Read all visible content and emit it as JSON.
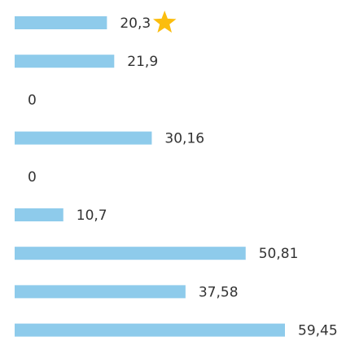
{
  "chart_data": {
    "type": "bar",
    "orientation": "horizontal",
    "color": "#8ecbeb",
    "values": [
      20.3,
      21.9,
      0,
      30.16,
      0,
      10.7,
      50.81,
      37.58,
      59.45
    ],
    "value_labels": [
      "20,3",
      "21,9",
      "0",
      "30,16",
      "0",
      "10,7",
      "50,81",
      "37,58",
      "59,45"
    ],
    "star_color": "#fbbd0e"
  }
}
